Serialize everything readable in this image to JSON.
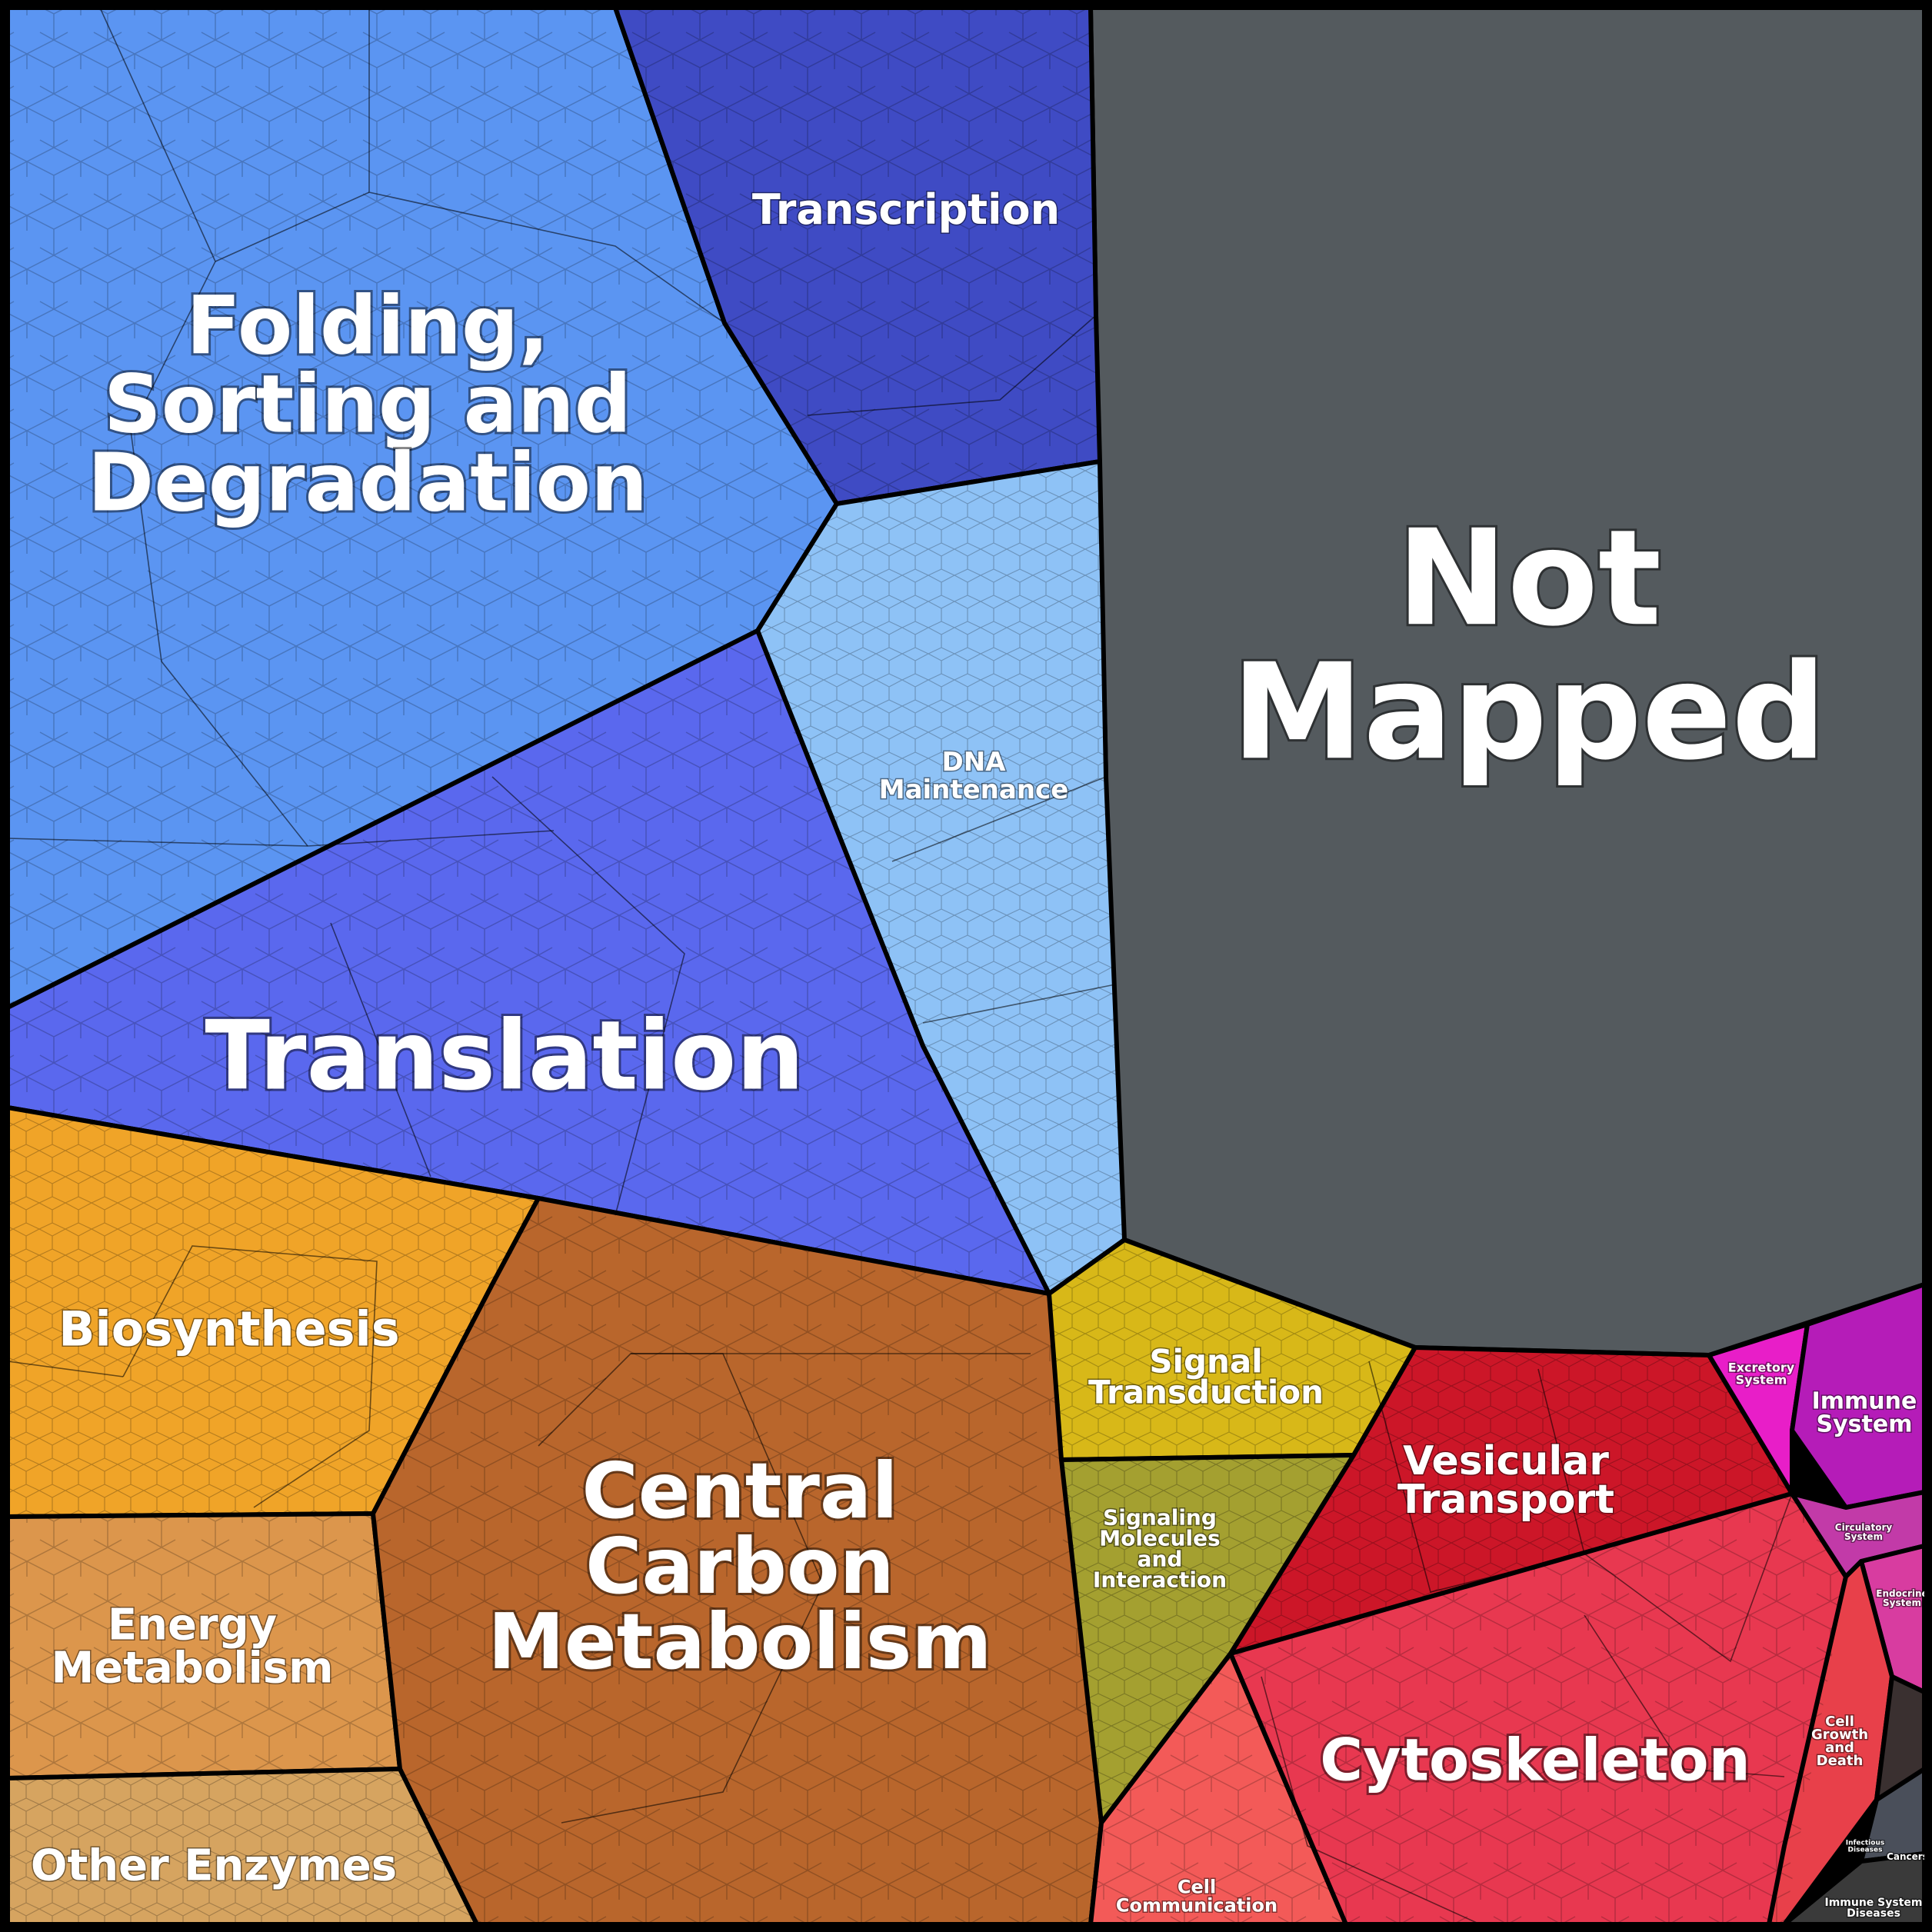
{
  "labels": {
    "not_mapped": [
      "Not",
      "Mapped"
    ],
    "folding": [
      "Folding,",
      "Sorting and",
      "Degradation"
    ],
    "transcription": [
      "Transcription"
    ],
    "dna_maintenance": [
      "DNA",
      "Maintenance"
    ],
    "translation": [
      "Translation"
    ],
    "biosynthesis": [
      "Biosynthesis"
    ],
    "energy_metabolism": [
      "Energy",
      "Metabolism"
    ],
    "other_enzymes": [
      "Other Enzymes"
    ],
    "central_carbon": [
      "Central",
      "Carbon",
      "Metabolism"
    ],
    "signal_transduction": [
      "Signal",
      "Transduction"
    ],
    "signaling_molecules": [
      "Signaling",
      "Molecules",
      "and",
      "Interaction"
    ],
    "vesicular_transport": [
      "Vesicular",
      "Transport"
    ],
    "cytoskeleton": [
      "Cytoskeleton"
    ],
    "cell_communication": [
      "Cell",
      "Communication"
    ],
    "excretory_system": [
      "Excretory",
      "System"
    ],
    "immune_system": [
      "Immune",
      "System"
    ],
    "circulatory_system": [
      "Circulatory",
      "System"
    ],
    "endocrine_system": [
      "Endocrine",
      "System"
    ],
    "cell_growth": [
      "Cell",
      "Growth",
      "and",
      "Death"
    ],
    "infectious_diseases": [
      "Infectious",
      "Diseases"
    ],
    "cancers": [
      "Cancers"
    ],
    "immune_system_diseases": [
      "Immune System",
      "Diseases"
    ]
  },
  "colors": {
    "not_mapped": "#545a5e",
    "folding": "#5b95f2",
    "transcription": "#3f4bc4",
    "dna_maintenance": "#8ec2f6",
    "translation": "#5a68ee",
    "biosynthesis": "#f0a428",
    "energy_metabolism": "#dc964c",
    "other_enzymes": "#d6a460",
    "central_carbon": "#b9662c",
    "signal_transduction": "#d8b818",
    "signaling_molecules": "#a4a030",
    "vesicular_transport": "#cc1628",
    "cytoskeleton": "#e83850",
    "cell_communication": "#f35a58",
    "organismal": "#cc2ab8",
    "diseases": "#3c3c3c"
  }
}
